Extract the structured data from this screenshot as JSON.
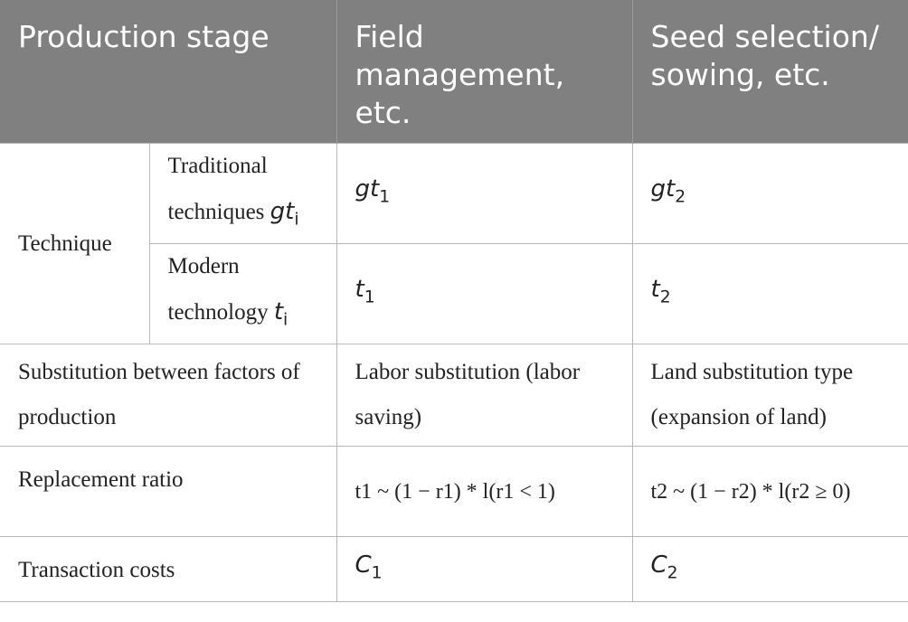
{
  "header": {
    "production_stage": "Production stage",
    "field_management": "Field management, etc.",
    "seed_selection": "Seed selection/ sowing, etc."
  },
  "rows": {
    "technique_label": "Technique",
    "traditional_label": "Traditional techniques",
    "traditional_symbol_base": "gt",
    "traditional_symbol_sub": "i",
    "traditional_field": {
      "base": "gt",
      "sub": "1"
    },
    "traditional_seed": {
      "base": "gt",
      "sub": "2"
    },
    "modern_label": "Modern technology",
    "modern_symbol_base": "t",
    "modern_symbol_sub": "i",
    "modern_field": {
      "base": "t",
      "sub": "1"
    },
    "modern_seed": {
      "base": "t",
      "sub": "2"
    },
    "substitution_label": "Substitution between factors of production",
    "substitution_field": "Labor substitution (labor saving)",
    "substitution_seed": "Land substitution type (expansion of land)",
    "ratio_label": "Replacement ratio",
    "ratio_field": "t1 ~ (1 − r1) * l(r1 < 1)",
    "ratio_seed": "t2 ~ (1 − r2) * l(r2 ≥ 0)",
    "costs_label": "Transaction costs",
    "costs_field": {
      "base": "C",
      "sub": "1"
    },
    "costs_seed": {
      "base": "C",
      "sub": "2"
    }
  }
}
